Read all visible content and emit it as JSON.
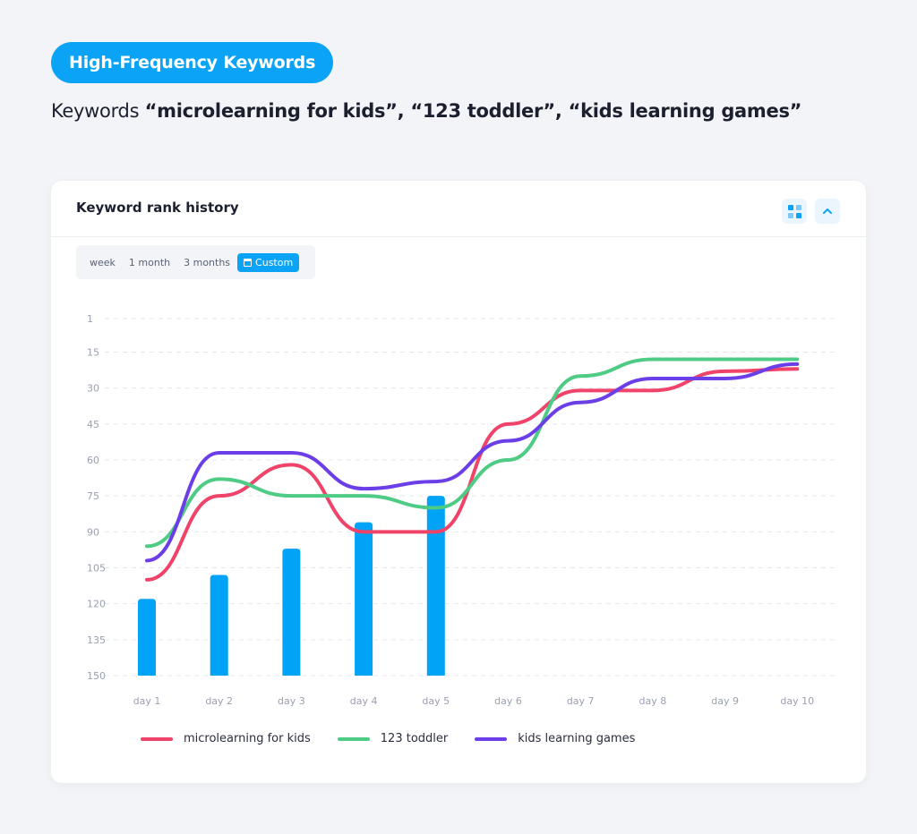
{
  "header": {
    "badge": "High-Frequency Keywords",
    "subtitle_prefix": "Keywords ",
    "subtitle_keywords": "“microlearning for kids”, “123 toddler”, “kids learning games”"
  },
  "card": {
    "title": "Keyword rank history",
    "grid_icon": "grid-view-icon",
    "collapse_icon": "chevron-up-icon",
    "ranges": [
      "week",
      "1 month",
      "3 months"
    ],
    "custom_label": "Custom",
    "custom_icon": "calendar-icon"
  },
  "colors": {
    "accent": "#0aa3f5",
    "microlearning": "#ef4369",
    "toddler": "#4ecb84",
    "kids_games": "#6c3ee8",
    "bar": "#00a3f5"
  },
  "chart_data": {
    "type": "line",
    "x": [
      "day 1",
      "day 2",
      "day 3",
      "day 4",
      "day 5",
      "day 6",
      "day 7",
      "day 8",
      "day 9",
      "day 10"
    ],
    "y_ticks": [
      1,
      15,
      30,
      45,
      60,
      75,
      90,
      105,
      120,
      135,
      150
    ],
    "ylim": [
      1,
      150
    ],
    "y_inverted": true,
    "grid": true,
    "legend_position": "bottom",
    "series": [
      {
        "name": "microlearning for kids",
        "color": "#ef4369",
        "values": [
          110,
          75,
          62,
          90,
          90,
          45,
          31,
          31,
          23,
          22
        ]
      },
      {
        "name": "123 toddler",
        "color": "#4ecb84",
        "values": [
          96,
          68,
          75,
          75,
          80,
          60,
          25,
          18,
          18,
          18
        ]
      },
      {
        "name": "kids learning games",
        "color": "#6c3ee8",
        "values": [
          102,
          57,
          57,
          72,
          69,
          52,
          36,
          26,
          26,
          20
        ]
      }
    ],
    "bars": {
      "color": "#00a3f5",
      "categories": [
        "day 1",
        "day 2",
        "day 3",
        "day 4",
        "day 5"
      ],
      "values": [
        118,
        108,
        97,
        86,
        75
      ]
    }
  }
}
